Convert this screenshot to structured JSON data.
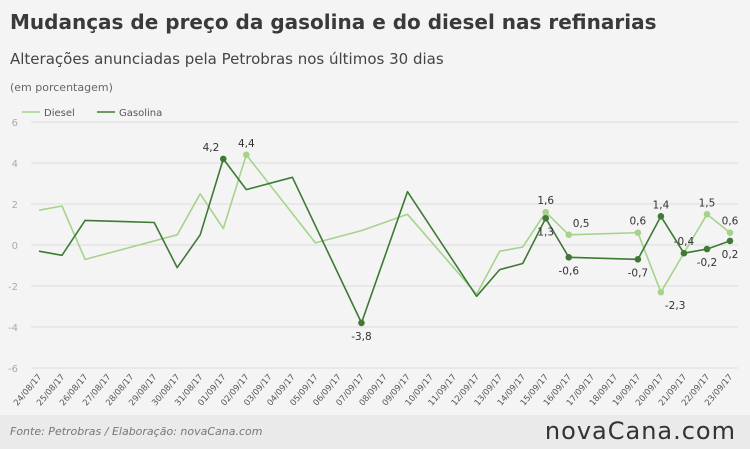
{
  "header": {
    "title": "Mudanças de preço da gasolina e do diesel nas refinarias",
    "subtitle": "Alterações anunciadas pela Petrobras nos últimos 30 dias",
    "unit": "(em porcentagem)"
  },
  "footer": {
    "source": "Fonte:  Petrobras   / Elaboração:  novaCana.com",
    "logo": "novaCana.com"
  },
  "colors": {
    "diesel": "#a6d38c",
    "gasolina": "#3e7a34",
    "grid": "#dddddd",
    "text": "#333333"
  },
  "chart_data": {
    "type": "line",
    "legend_position": "top-left",
    "grid": true,
    "ylim": [
      -6,
      6
    ],
    "yticks": [
      -6,
      -4,
      -2,
      0,
      2,
      4,
      6
    ],
    "categories": [
      "24/08/17",
      "25/08/17",
      "26/08/17",
      "27/08/17",
      "28/08/17",
      "29/08/17",
      "30/08/17",
      "31/08/17",
      "01/09/17",
      "02/09/17",
      "03/09/17",
      "04/09/17",
      "05/09/17",
      "06/09/17",
      "07/09/17",
      "08/09/17",
      "09/09/17",
      "10/09/17",
      "11/09/17",
      "12/09/17",
      "13/09/17",
      "14/09/17",
      "15/09/17",
      "16/09/17",
      "17/09/17",
      "18/09/17",
      "19/09/17",
      "20/09/17",
      "21/09/17",
      "22/09/17",
      "23/09/17"
    ],
    "series": [
      {
        "name": "Diesel",
        "points": [
          [
            0,
            1.7
          ],
          [
            1,
            1.9
          ],
          [
            2,
            -0.7
          ],
          [
            6,
            0.5
          ],
          [
            7,
            2.5
          ],
          [
            8,
            0.8
          ],
          [
            9,
            4.4
          ],
          [
            12,
            0.1
          ],
          [
            14,
            0.7
          ],
          [
            16,
            1.5
          ],
          [
            19,
            -2.4
          ],
          [
            20,
            -0.3
          ],
          [
            21,
            -0.1
          ],
          [
            22,
            1.6
          ],
          [
            23,
            0.5
          ],
          [
            26,
            0.6
          ],
          [
            27,
            -2.3
          ],
          [
            28,
            -0.4
          ],
          [
            29,
            1.5
          ],
          [
            30,
            0.6
          ]
        ],
        "labels": [
          {
            "i": 9,
            "text": "4,4",
            "pos": "above"
          },
          {
            "i": 22,
            "text": "1,6",
            "pos": "above"
          },
          {
            "i": 23,
            "text": "0,5",
            "pos": "above-right"
          },
          {
            "i": 26,
            "text": "0,6",
            "pos": "above"
          },
          {
            "i": 27,
            "text": "-2,3",
            "pos": "below-right"
          },
          {
            "i": 28,
            "text": "-0,4",
            "pos": "above"
          },
          {
            "i": 29,
            "text": "1,5",
            "pos": "above"
          },
          {
            "i": 30,
            "text": "0,6",
            "pos": "above"
          }
        ],
        "marked": [
          9,
          22,
          23,
          26,
          27,
          29,
          30
        ]
      },
      {
        "name": "Gasolina",
        "points": [
          [
            0,
            -0.3
          ],
          [
            1,
            -0.5
          ],
          [
            2,
            1.2
          ],
          [
            5,
            1.1
          ],
          [
            6,
            -1.1
          ],
          [
            7,
            0.5
          ],
          [
            8,
            4.2
          ],
          [
            9,
            2.7
          ],
          [
            11,
            3.3
          ],
          [
            14,
            -3.8
          ],
          [
            16,
            2.6
          ],
          [
            19,
            -2.5
          ],
          [
            20,
            -1.2
          ],
          [
            21,
            -0.9
          ],
          [
            22,
            1.3
          ],
          [
            23,
            -0.6
          ],
          [
            26,
            -0.7
          ],
          [
            27,
            1.4
          ],
          [
            28,
            -0.4
          ],
          [
            29,
            -0.2
          ],
          [
            30,
            0.2
          ]
        ],
        "labels": [
          {
            "i": 8,
            "text": "4,2",
            "pos": "above-left"
          },
          {
            "i": 14,
            "text": "-3,8",
            "pos": "below"
          },
          {
            "i": 22,
            "text": "1,3",
            "pos": "below"
          },
          {
            "i": 23,
            "text": "-0,6",
            "pos": "below"
          },
          {
            "i": 26,
            "text": "-0,7",
            "pos": "below"
          },
          {
            "i": 27,
            "text": "1,4",
            "pos": "above"
          },
          {
            "i": 29,
            "text": "-0,2",
            "pos": "below"
          },
          {
            "i": 30,
            "text": "0,2",
            "pos": "below"
          }
        ],
        "marked": [
          8,
          14,
          22,
          23,
          26,
          27,
          28,
          29,
          30
        ]
      }
    ]
  }
}
